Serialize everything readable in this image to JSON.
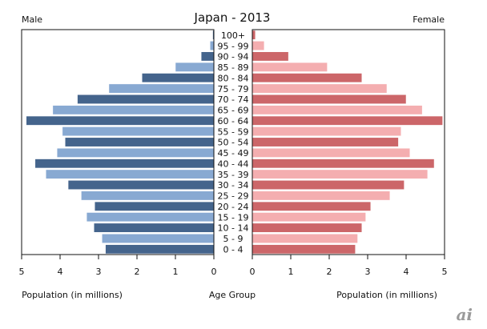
{
  "chart_data": {
    "type": "bar",
    "subtype": "population-pyramid",
    "title": "Japan - 2013",
    "left_label": "Male",
    "right_label": "Female",
    "xlabel_left": "Population (in millions)",
    "xlabel_center": "Age Group",
    "xlabel_right": "Population (in millions)",
    "xlim": [
      0,
      5
    ],
    "x_ticks": [
      "0",
      "1",
      "2",
      "3",
      "4",
      "5"
    ],
    "categories": [
      "100+",
      "95 - 99",
      "90 - 94",
      "85 - 89",
      "80 - 84",
      "75 - 79",
      "70 - 74",
      "65 - 69",
      "60 - 64",
      "55 - 59",
      "50 - 54",
      "45 - 49",
      "40 - 44",
      "35 - 39",
      "30 - 34",
      "25 - 29",
      "20 - 24",
      "15 - 19",
      "10 - 14",
      "5 - 9",
      "0 - 4"
    ],
    "series": [
      {
        "name": "Male",
        "colors": [
          "#44648c",
          "#88a9d2"
        ],
        "values": [
          0.03,
          0.1,
          0.33,
          1.0,
          1.87,
          2.73,
          3.55,
          4.19,
          4.88,
          3.94,
          3.87,
          4.08,
          4.65,
          4.37,
          3.79,
          3.45,
          3.1,
          3.31,
          3.12,
          2.91,
          2.82
        ]
      },
      {
        "name": "Female",
        "colors": [
          "#cc6669",
          "#f4aeb0"
        ],
        "values": [
          0.08,
          0.31,
          0.94,
          1.95,
          2.85,
          3.5,
          4.0,
          4.42,
          4.95,
          3.87,
          3.8,
          4.1,
          4.73,
          4.56,
          3.95,
          3.58,
          3.08,
          2.95,
          2.85,
          2.74,
          2.68
        ]
      }
    ],
    "grid": false,
    "legend": "none"
  },
  "watermark": "ai"
}
